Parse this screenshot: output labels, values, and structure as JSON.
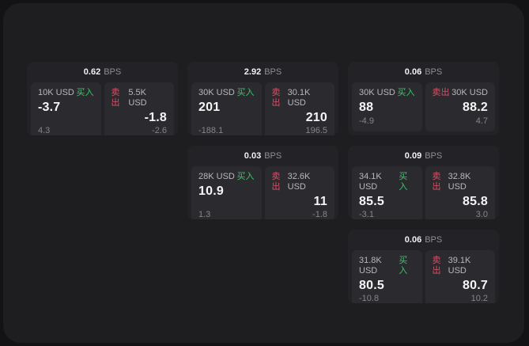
{
  "colors": {
    "buy": "#34c964",
    "sell": "#d94f66",
    "panel": "#1e1e21",
    "card": "#232327",
    "tile": "#2b2b2f"
  },
  "cards": [
    {
      "bps": "0.62",
      "unit": "BPS",
      "buy": {
        "label": "买入",
        "amount": "10K USD",
        "price": "-3.7",
        "delta": "4.3"
      },
      "sell": {
        "label": "卖出",
        "amount": "5.5K USD",
        "price": "-1.8",
        "delta": "-2.6"
      }
    },
    {
      "bps": "2.92",
      "unit": "BPS",
      "buy": {
        "label": "买入",
        "amount": "30K USD",
        "price": "201",
        "delta": "-188.1"
      },
      "sell": {
        "label": "卖出",
        "amount": "30.1K USD",
        "price": "210",
        "delta": "196.5"
      }
    },
    {
      "bps": "0.06",
      "unit": "BPS",
      "buy": {
        "label": "买入",
        "amount": "30K USD",
        "price": "88",
        "delta": "-4.9"
      },
      "sell": {
        "label": "卖出",
        "amount": "30K USD",
        "price": "88.2",
        "delta": "4.7"
      }
    },
    {
      "bps": "0.03",
      "unit": "BPS",
      "buy": {
        "label": "买入",
        "amount": "28K USD",
        "price": "10.9",
        "delta": "1.3"
      },
      "sell": {
        "label": "卖出",
        "amount": "32.6K USD",
        "price": "11",
        "delta": "-1.8"
      }
    },
    {
      "bps": "0.09",
      "unit": "BPS",
      "buy": {
        "label": "买入",
        "amount": "34.1K USD",
        "price": "85.5",
        "delta": "-3.1"
      },
      "sell": {
        "label": "卖出",
        "amount": "32.8K USD",
        "price": "85.8",
        "delta": "3.0"
      }
    },
    {
      "bps": "0.06",
      "unit": "BPS",
      "buy": {
        "label": "买入",
        "amount": "31.8K USD",
        "price": "80.5",
        "delta": "-10.8"
      },
      "sell": {
        "label": "卖出",
        "amount": "39.1K USD",
        "price": "80.7",
        "delta": "10.2"
      }
    }
  ]
}
